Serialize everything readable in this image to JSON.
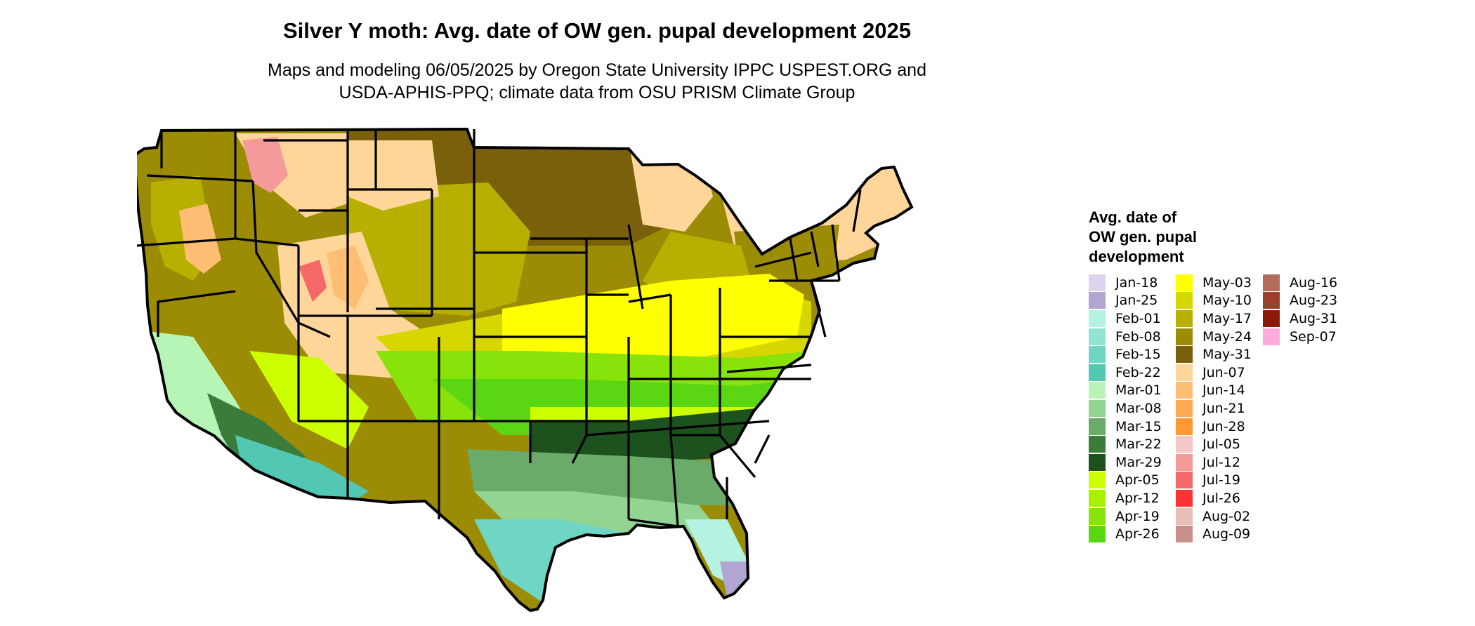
{
  "title": "Silver Y moth: Avg. date of OW gen. pupal development 2025",
  "subtitle_lines": [
    "Maps and modeling 06/05/2025 by Oregon State University IPPC USPEST.ORG and",
    "USDA-APHIS-PPQ; climate data from OSU PRISM Climate Group"
  ],
  "map": {
    "region": "contiguous-united-states",
    "border_color": "#000000",
    "land_fill": "#c9a84a",
    "water_color": "#ffffff"
  },
  "legend": {
    "title_lines": [
      "Avg. date of",
      "OW gen. pupal",
      "development"
    ],
    "columns": [
      [
        {
          "label": "Jan-18",
          "color": "#dcd3ee"
        },
        {
          "label": "Jan-25",
          "color": "#b1a6d2"
        },
        {
          "label": "Feb-01",
          "color": "#b6f2e2"
        },
        {
          "label": "Feb-08",
          "color": "#8fe5d2"
        },
        {
          "label": "Feb-15",
          "color": "#6fd6c6"
        },
        {
          "label": "Feb-22",
          "color": "#52c7b4"
        },
        {
          "label": "Mar-01",
          "color": "#b6f5b6"
        },
        {
          "label": "Mar-08",
          "color": "#93d493"
        },
        {
          "label": "Mar-15",
          "color": "#6aab6a"
        },
        {
          "label": "Mar-22",
          "color": "#3a7d3a"
        },
        {
          "label": "Mar-29",
          "color": "#1d511d"
        },
        {
          "label": "Apr-05",
          "color": "#ccff00"
        },
        {
          "label": "Apr-12",
          "color": "#a8f000"
        },
        {
          "label": "Apr-19",
          "color": "#88e30a"
        },
        {
          "label": "Apr-26",
          "color": "#5bd612"
        }
      ],
      [
        {
          "label": "May-03",
          "color": "#ffff00"
        },
        {
          "label": "May-10",
          "color": "#d6d600"
        },
        {
          "label": "May-17",
          "color": "#b8b000"
        },
        {
          "label": "May-24",
          "color": "#9c8b05"
        },
        {
          "label": "May-31",
          "color": "#7a600a"
        },
        {
          "label": "Jun-07",
          "color": "#ffd699"
        },
        {
          "label": "Jun-14",
          "color": "#ffbe73"
        },
        {
          "label": "Jun-21",
          "color": "#ffaa55"
        },
        {
          "label": "Jun-28",
          "color": "#ff9933"
        },
        {
          "label": "Jul-05",
          "color": "#f5c6c6"
        },
        {
          "label": "Jul-12",
          "color": "#f59a9a"
        },
        {
          "label": "Jul-19",
          "color": "#f56969"
        },
        {
          "label": "Jul-26",
          "color": "#ff3333"
        },
        {
          "label": "Aug-02",
          "color": "#e8bfb5"
        },
        {
          "label": "Aug-09",
          "color": "#c9908a"
        }
      ],
      [
        {
          "label": "Aug-16",
          "color": "#b36b5c"
        },
        {
          "label": "Aug-23",
          "color": "#9e3f2e"
        },
        {
          "label": "Aug-31",
          "color": "#8b1a0a"
        },
        {
          "label": "Sep-07",
          "color": "#ffaadd"
        }
      ]
    ]
  }
}
